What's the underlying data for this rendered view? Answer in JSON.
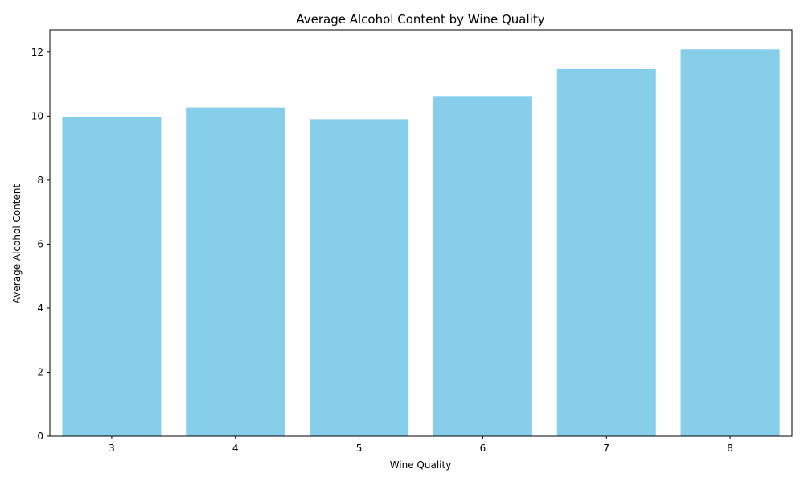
{
  "chart_data": {
    "type": "bar",
    "title": "Average Alcohol Content by Wine Quality",
    "xlabel": "Wine Quality",
    "ylabel": "Average Alcohol Content",
    "categories": [
      "3",
      "4",
      "5",
      "6",
      "7",
      "8"
    ],
    "values": [
      9.96,
      10.27,
      9.9,
      10.63,
      11.47,
      12.09
    ],
    "ylim": [
      0,
      12.7
    ],
    "yticks": [
      0,
      2,
      4,
      6,
      8,
      10,
      12
    ],
    "grid": false,
    "legend": "none",
    "colors": {
      "bar": "#87CEEB",
      "axis": "#000000"
    }
  }
}
